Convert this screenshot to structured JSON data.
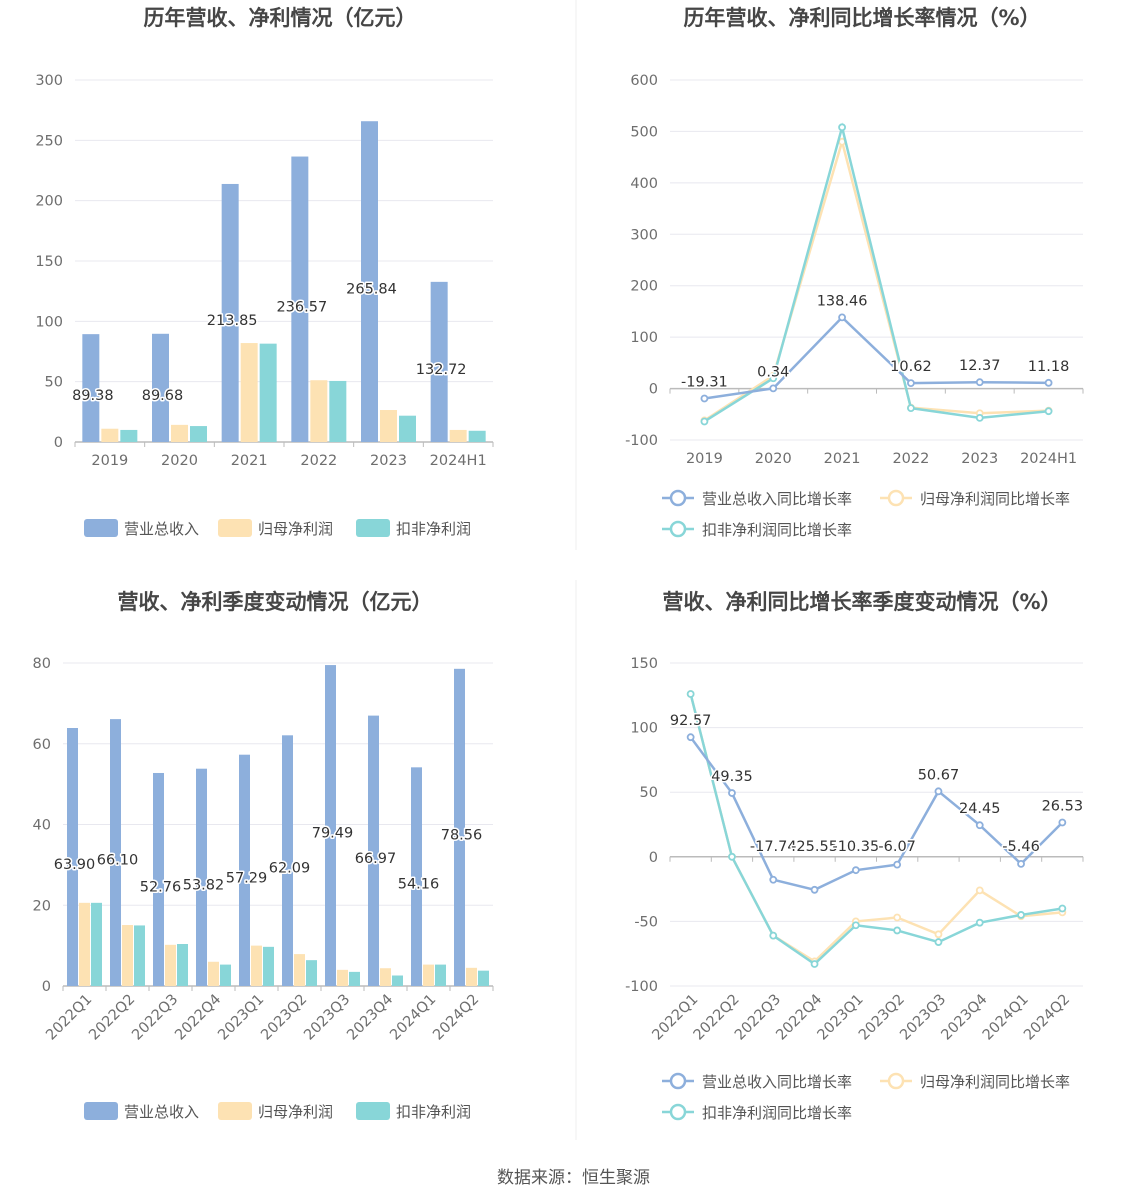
{
  "colors": {
    "revenue": "#8dafdc",
    "net_profit": "#fde2b3",
    "deducted": "#88d6d8",
    "axis": "#bbbbbb",
    "grid": "#e8e8ef",
    "divider": "#efefef"
  },
  "source": "数据来源：恒生聚源",
  "chart_data": [
    {
      "id": "c1",
      "type": "bar",
      "title": "历年营收、净利情况（亿元）",
      "categories": [
        "2019",
        "2020",
        "2021",
        "2022",
        "2023",
        "2024H1"
      ],
      "ylim": [
        0,
        300
      ],
      "yticks": [
        0,
        50,
        100,
        150,
        200,
        250,
        300
      ],
      "series": [
        {
          "name": "营业总收入",
          "values": [
            89.38,
            89.68,
            213.85,
            236.57,
            265.84,
            132.72
          ],
          "labels": [
            "89.38",
            "89.68",
            "213.85",
            "236.57",
            "265.84",
            "132.72"
          ]
        },
        {
          "name": "归母净利润",
          "values": [
            11.0,
            14.2,
            82.0,
            51.2,
            26.5,
            10.0
          ],
          "labels": []
        },
        {
          "name": "扣非净利润",
          "values": [
            10.0,
            13.2,
            81.5,
            50.6,
            21.8,
            9.3
          ],
          "labels": []
        }
      ]
    },
    {
      "id": "c2",
      "type": "line",
      "title": "历年营收、净利同比增长率情况（%）",
      "categories": [
        "2019",
        "2020",
        "2021",
        "2022",
        "2023",
        "2024H1"
      ],
      "ylim": [
        -100,
        600
      ],
      "yticks": [
        -100,
        0,
        100,
        200,
        300,
        400,
        500,
        600
      ],
      "series": [
        {
          "name": "营业总收入同比增长率",
          "values": [
            -19.31,
            0.34,
            138.46,
            10.62,
            12.37,
            11.18
          ],
          "labels": [
            "-19.31",
            "0.34",
            "138.46",
            "10.62",
            "12.37",
            "11.18"
          ]
        },
        {
          "name": "归母净利润同比增长率",
          "values": [
            -62,
            25,
            480,
            -37,
            -48,
            -43
          ],
          "labels": []
        },
        {
          "name": "扣非净利润同比增长率",
          "values": [
            -64,
            20,
            508,
            -38,
            -57,
            -44
          ],
          "labels": []
        }
      ]
    },
    {
      "id": "c3",
      "type": "bar",
      "title": "营收、净利季度变动情况（亿元）",
      "categories": [
        "2022Q1",
        "2022Q2",
        "2022Q3",
        "2022Q4",
        "2023Q1",
        "2023Q2",
        "2023Q3",
        "2023Q4",
        "2024Q1",
        "2024Q2"
      ],
      "ylim": [
        0,
        80
      ],
      "yticks": [
        0,
        20,
        40,
        60,
        80
      ],
      "series": [
        {
          "name": "营业总收入",
          "values": [
            63.9,
            66.1,
            52.76,
            53.82,
            57.29,
            62.09,
            79.49,
            66.97,
            54.16,
            78.56
          ],
          "labels": [
            "63.90",
            "66.10",
            "52.76",
            "53.82",
            "57.29",
            "62.09",
            "79.49",
            "66.97",
            "54.16",
            "78.56"
          ]
        },
        {
          "name": "归母净利润",
          "values": [
            20.6,
            15.1,
            10.2,
            6.0,
            10.0,
            7.9,
            4.0,
            4.4,
            5.3,
            4.5
          ],
          "labels": []
        },
        {
          "name": "扣非净利润",
          "values": [
            20.6,
            15.0,
            10.4,
            5.3,
            9.7,
            6.4,
            3.5,
            2.6,
            5.3,
            3.8
          ],
          "labels": []
        }
      ]
    },
    {
      "id": "c4",
      "type": "line",
      "title": "营收、净利同比增长率季度变动情况（%）",
      "categories": [
        "2022Q1",
        "2022Q2",
        "2022Q3",
        "2022Q4",
        "2023Q1",
        "2023Q2",
        "2023Q3",
        "2023Q4",
        "2024Q1",
        "2024Q2"
      ],
      "ylim": [
        -100,
        150
      ],
      "yticks": [
        -100,
        -50,
        0,
        50,
        100,
        150
      ],
      "series": [
        {
          "name": "营业总收入同比增长率",
          "values": [
            92.57,
            49.35,
            -17.74,
            -25.55,
            -10.35,
            -6.07,
            50.67,
            24.45,
            -5.46,
            26.53
          ],
          "labels": [
            "92.57",
            "49.35",
            "-17.74",
            "-25.55",
            "-10.35",
            "-6.07",
            "50.67",
            "24.45",
            "-5.46",
            "26.53"
          ]
        },
        {
          "name": "归母净利润同比增长率",
          "values": [
            126,
            0,
            -61,
            -81,
            -50,
            -47,
            -60,
            -26,
            -46,
            -43
          ],
          "labels": []
        },
        {
          "name": "扣非净利润同比增长率",
          "values": [
            126,
            0,
            -61,
            -83,
            -53,
            -57,
            -66,
            -51,
            -45,
            -40
          ],
          "labels": []
        }
      ]
    }
  ]
}
